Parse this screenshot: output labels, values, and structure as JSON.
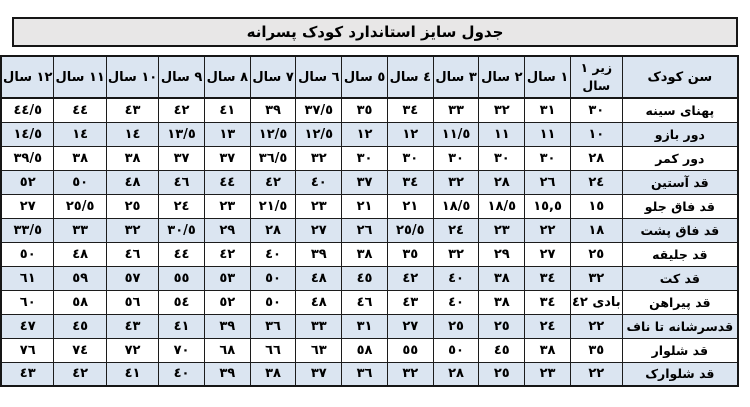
{
  "title": "جدول سایز استاندارد کودک پسرانه",
  "colors": {
    "header_fill": "#dbe5f1",
    "alt_row_fill": "#dbe5f1",
    "title_fill": "#e8e7e7",
    "border": "#1c1c1c",
    "text": "#000000"
  },
  "table": {
    "corner_header": "سن کودک",
    "age_headers": [
      "زیر ١ سال",
      "١ سال",
      "٢ سال",
      "٣ سال",
      "٤ سال",
      "٥ سال",
      "٦ سال",
      "٧ سال",
      "٨ سال",
      "٩ سال",
      "١٠ سال",
      "١١ سال",
      "١٢ سال"
    ],
    "rows": [
      {
        "label": "پهنای سینه",
        "values": [
          "٣٠",
          "٣١",
          "٣٢",
          "٣٣",
          "٣٤",
          "٣٥",
          "٣٧/٥",
          "٣٩",
          "٤١",
          "٤٢",
          "٤٣",
          "٤٤",
          "٤٤/٥"
        ]
      },
      {
        "label": "دور بازو",
        "values": [
          "١٠",
          "١١",
          "١١",
          "١١/٥",
          "١٢",
          "١٢",
          "١٢/٥",
          "١٢/٥",
          "١٣",
          "١٣/٥",
          "١٤",
          "١٤",
          "١٤/٥"
        ]
      },
      {
        "label": "دور کمر",
        "values": [
          "٢٨",
          "٣٠",
          "٣٠",
          "٣٠",
          "٣٠",
          "٣٠",
          "٣٢",
          "٣٦/٥",
          "٣٧",
          "٣٧",
          "٣٨",
          "٣٨",
          "٣٩/٥"
        ]
      },
      {
        "label": "قد آستین",
        "values": [
          "٢٤",
          "٢٦",
          "٢٨",
          "٣٢",
          "٣٤",
          "٣٧",
          "٤٠",
          "٤٢",
          "٤٤",
          "٤٦",
          "٤٨",
          "٥٠",
          "٥٢"
        ]
      },
      {
        "label": "قد فاق جلو",
        "values": [
          "١٥",
          "١٥,٥",
          "١٨/٥",
          "١٨/٥",
          "٢١",
          "٢١",
          "٢٣",
          "٢١/٥",
          "٢٣",
          "٢٤",
          "٢٥",
          "٢٥/٥",
          "٢٧"
        ]
      },
      {
        "label": "قد فاق پشت",
        "values": [
          "١٨",
          "٢٢",
          "٢٣",
          "٢٤",
          "٢٥/٥",
          "٢٦",
          "٢٧",
          "٢٨",
          "٢٩",
          "٣٠/٥",
          "٣٢",
          "٣٣",
          "٣٣/٥"
        ]
      },
      {
        "label": "قد جلیقه",
        "values": [
          "٢٥",
          "٢٧",
          "٢٩",
          "٣٢",
          "٣٥",
          "٣٨",
          "٣٩",
          "٤٠",
          "٤٢",
          "٤٤",
          "٤٦",
          "٤٨",
          "٥٠"
        ]
      },
      {
        "label": "قد کت",
        "values": [
          "٣٢",
          "٣٤",
          "٣٨",
          "٤٠",
          "٤٢",
          "٤٥",
          "٤٨",
          "٥٠",
          "٥٣",
          "٥٥",
          "٥٧",
          "٥٩",
          "٦١"
        ]
      },
      {
        "label": "قد پیراهن",
        "values": [
          "بادی ٤٢",
          "٣٤",
          "٣٨",
          "٤٠",
          "٤٣",
          "٤٦",
          "٤٨",
          "٥٠",
          "٥٢",
          "٥٤",
          "٥٦",
          "٥٨",
          "٦٠"
        ]
      },
      {
        "label": "قدسرشانه تا ناف",
        "values": [
          "٢٢",
          "٢٤",
          "٢٥",
          "٢٥",
          "٢٧",
          "٣١",
          "٣٣",
          "٣٦",
          "٣٩",
          "٤١",
          "٤٣",
          "٤٥",
          "٤٧"
        ]
      },
      {
        "label": "قد شلوار",
        "values": [
          "٣٥",
          "٣٨",
          "٤٥",
          "٥٠",
          "٥٥",
          "٥٨",
          "٦٣",
          "٦٦",
          "٦٨",
          "٧٠",
          "٧٢",
          "٧٤",
          "٧٦"
        ]
      },
      {
        "label": "قد شلوارک",
        "values": [
          "٢٢",
          "٢٣",
          "٢٥",
          "٢٨",
          "٣٢",
          "٣٦",
          "٣٧",
          "٣٨",
          "٣٩",
          "٤٠",
          "٤١",
          "٤٢",
          "٤٣"
        ]
      }
    ],
    "layout": {
      "label_col_width": 121,
      "under1_col_width": 46,
      "age_col_width": 47
    }
  }
}
